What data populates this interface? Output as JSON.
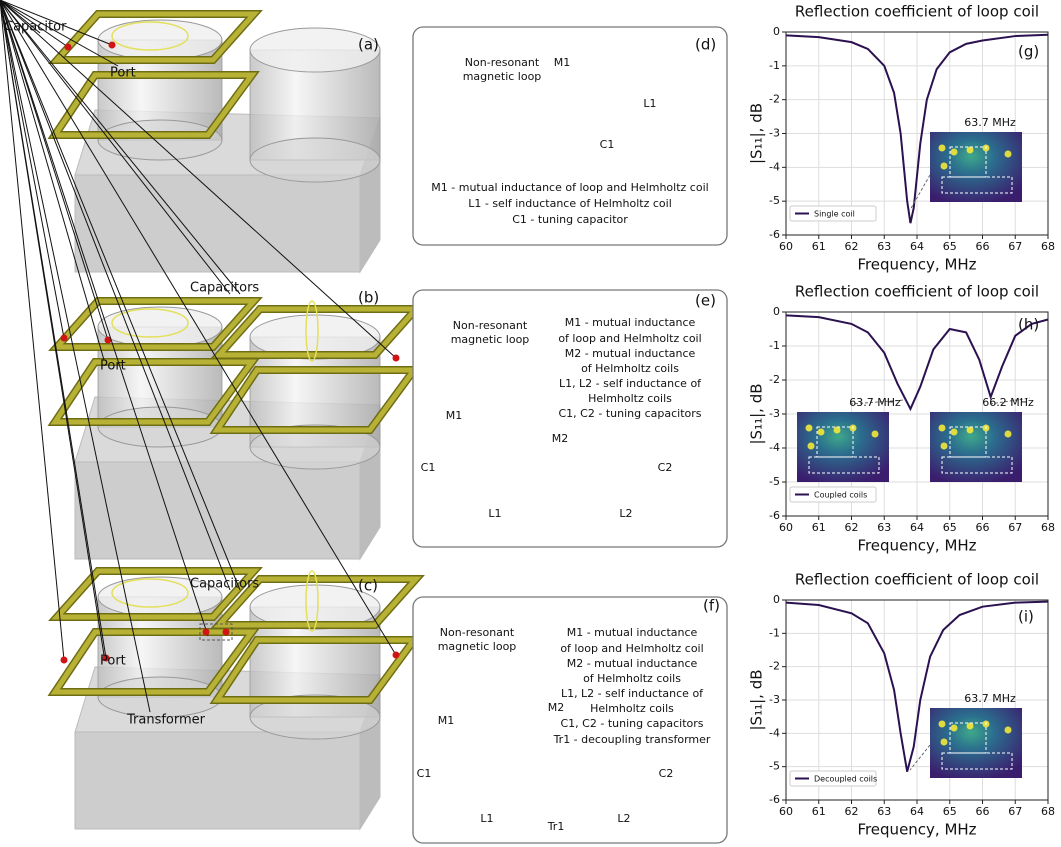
{
  "render_panels": [
    {
      "tag": "(a)",
      "labels": [
        "Capacitor",
        "Port"
      ]
    },
    {
      "tag": "(b)",
      "labels": [
        "Capacitors",
        "Port"
      ]
    },
    {
      "tag": "(c)",
      "labels": [
        "Capacitors",
        "Port",
        "Transformer"
      ]
    }
  ],
  "circuit_panels": [
    {
      "tag": "(d)",
      "loop_label": [
        "Non-resonant",
        "magnetic loop"
      ],
      "components": [
        "M1",
        "L1",
        "C1"
      ],
      "legend": [
        "M1 - mutual inductance of loop and Helmholtz coil",
        "L1 - self inductance of Helmholtz coil",
        "C1 - tuning capacitor"
      ]
    },
    {
      "tag": "(e)",
      "loop_label": [
        "Non-resonant",
        "magnetic loop"
      ],
      "components": [
        "M1",
        "M2",
        "C1",
        "C2",
        "L1",
        "L2"
      ],
      "legend": [
        "M1 - mutual inductance",
        "of loop and Helmholtz coil",
        "M2 - mutual inductance",
        "of Helmholtz coils",
        "L1, L2 - self inductance of",
        "Helmholtz coils",
        "C1, C2 - tuning capacitors"
      ]
    },
    {
      "tag": "(f)",
      "loop_label": [
        "Non-resonant",
        "magnetic loop"
      ],
      "components": [
        "M1",
        "M2",
        "C1",
        "C2",
        "L1",
        "L2",
        "Tr1"
      ],
      "legend": [
        "M1 - mutual inductance",
        "of loop and Helmholtz coil",
        "M2 - mutual inductance",
        "of Helmholtz coils",
        "L1, L2 - self inductance of",
        "Helmholtz coils",
        "C1, C2 - tuning capacitors",
        "Tr1 - decoupling transformer"
      ]
    }
  ],
  "chart_data": [
    {
      "type": "line",
      "tag": "(g)",
      "title": "Reflection coefficient of loop coil",
      "x_label": "Frequency, MHz",
      "y_label": "|S₁₁|, dB",
      "x": [
        60,
        61,
        62,
        62.5,
        63,
        63.3,
        63.5,
        63.7,
        63.8,
        63.9,
        64.1,
        64.3,
        64.6,
        65,
        65.5,
        66,
        67,
        68
      ],
      "series": [
        {
          "name": "Single coil",
          "color": "#2b1150",
          "values": [
            -0.1,
            -0.15,
            -0.3,
            -0.5,
            -1.0,
            -1.8,
            -3.0,
            -5.0,
            -5.65,
            -5.2,
            -3.3,
            -2.0,
            -1.1,
            -0.6,
            -0.35,
            -0.25,
            -0.12,
            -0.08
          ]
        }
      ],
      "xlim": [
        60,
        68
      ],
      "ylim": [
        -6,
        0
      ],
      "xticks": [
        60,
        61,
        62,
        63,
        64,
        65,
        66,
        67,
        68
      ],
      "yticks": [
        0,
        -1,
        -2,
        -3,
        -4,
        -5,
        -6
      ],
      "grid": true,
      "legend": "lower left",
      "insets": [
        "63.7 MHz"
      ]
    },
    {
      "type": "line",
      "tag": "(h)",
      "title": "Reflection coefficient of loop coil",
      "x_label": "Frequency, MHz",
      "y_label": "|S₁₁|, dB",
      "x": [
        60,
        61,
        62,
        62.5,
        63,
        63.4,
        63.8,
        64.1,
        64.5,
        65,
        65.5,
        65.9,
        66.25,
        66.6,
        67,
        67.5,
        68
      ],
      "series": [
        {
          "name": "Coupled coils",
          "color": "#2b1150",
          "values": [
            -0.1,
            -0.15,
            -0.35,
            -0.6,
            -1.2,
            -2.1,
            -2.85,
            -2.2,
            -1.1,
            -0.5,
            -0.6,
            -1.4,
            -2.5,
            -1.6,
            -0.7,
            -0.35,
            -0.22
          ]
        }
      ],
      "xlim": [
        60,
        68
      ],
      "ylim": [
        -6,
        0
      ],
      "xticks": [
        60,
        61,
        62,
        63,
        64,
        65,
        66,
        67,
        68
      ],
      "yticks": [
        0,
        -1,
        -2,
        -3,
        -4,
        -5,
        -6
      ],
      "grid": true,
      "legend": "lower left",
      "insets": [
        "63.7 MHz",
        "66.2 MHz"
      ]
    },
    {
      "type": "line",
      "tag": "(i)",
      "title": "Reflection coefficient of loop coil",
      "x_label": "Frequency, MHz",
      "y_label": "|S₁₁|, dB",
      "x": [
        60,
        61,
        62,
        62.5,
        63,
        63.3,
        63.5,
        63.7,
        63.9,
        64.1,
        64.4,
        64.8,
        65.3,
        66,
        67,
        68
      ],
      "series": [
        {
          "name": "Decoupled coils",
          "color": "#2b1150",
          "values": [
            -0.08,
            -0.15,
            -0.4,
            -0.7,
            -1.6,
            -2.7,
            -4.0,
            -5.15,
            -4.4,
            -3.0,
            -1.7,
            -0.9,
            -0.45,
            -0.2,
            -0.08,
            -0.05
          ]
        }
      ],
      "xlim": [
        60,
        68
      ],
      "ylim": [
        -6,
        0
      ],
      "xticks": [
        60,
        61,
        62,
        63,
        64,
        65,
        66,
        67,
        68
      ],
      "yticks": [
        0,
        -1,
        -2,
        -3,
        -4,
        -5,
        -6
      ],
      "grid": true,
      "legend": "lower left",
      "insets": [
        "63.7 MHz"
      ]
    }
  ]
}
